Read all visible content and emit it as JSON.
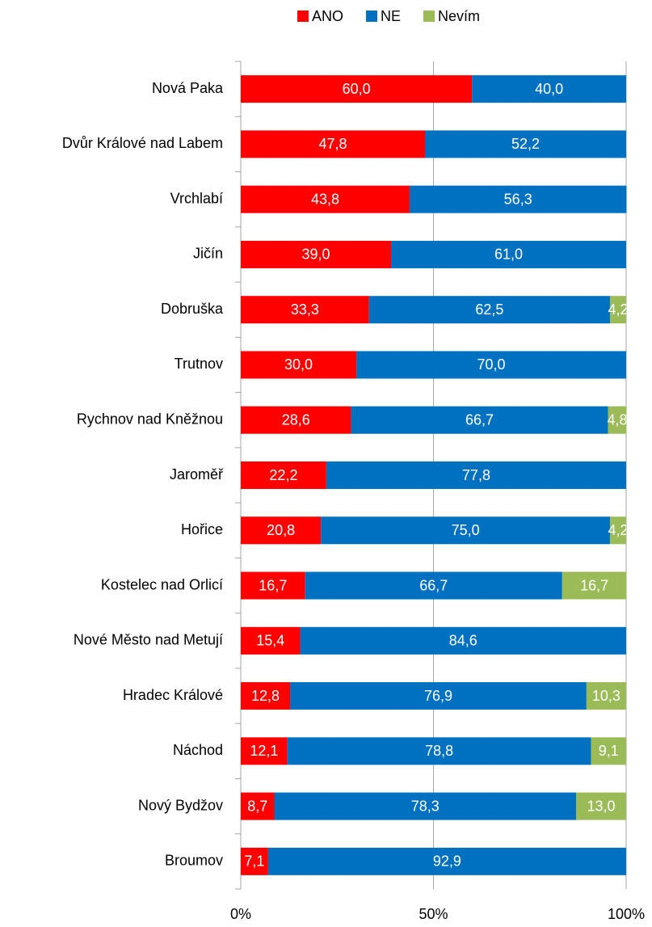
{
  "chart_data": {
    "type": "stacked-bar-horizontal",
    "categories": [
      "Nová Paka",
      "Dvůr Králové nad Labem",
      "Vrchlabí",
      "Jičín",
      "Dobruška",
      "Trutnov",
      "Rychnov nad Kněžnou",
      "Jaroměř",
      "Hořice",
      "Kostelec nad Orlicí",
      "Nové Město nad Metují",
      "Hradec Králové",
      "Náchod",
      "Nový Bydžov",
      "Broumov"
    ],
    "series": [
      {
        "name": "ANO",
        "color": "#ff0000",
        "values": [
          60,
          47.8,
          43.8,
          39,
          33.3,
          30,
          28.6,
          22.2,
          20.8,
          16.7,
          15.4,
          12.8,
          12.1,
          8.7,
          7.1
        ],
        "value_labels": [
          "60,0",
          "47,8",
          "43,8",
          "39,0",
          "33,3",
          "30,0",
          "28,6",
          "22,2",
          "20,8",
          "16,7",
          "15,4",
          "12,8",
          "12,1",
          "8,7",
          "7,1"
        ]
      },
      {
        "name": "NE",
        "color": "#0070c0",
        "values": [
          40,
          52.2,
          56.3,
          61,
          62.5,
          70,
          66.7,
          77.8,
          75,
          66.7,
          84.6,
          76.9,
          78.8,
          78.3,
          92.9
        ],
        "value_labels": [
          "40,0",
          "52,2",
          "56,3",
          "61,0",
          "62,5",
          "70,0",
          "66,7",
          "77,8",
          "75,0",
          "66,7",
          "84,6",
          "76,9",
          "78,8",
          "78,3",
          "92,9"
        ]
      },
      {
        "name": "Nevím",
        "color": "#9bbb59",
        "values": [
          null,
          null,
          null,
          null,
          4.2,
          null,
          4.8,
          null,
          4.2,
          16.7,
          null,
          10.3,
          9.1,
          13,
          null
        ],
        "value_labels": [
          null,
          null,
          null,
          null,
          "4,2",
          null,
          "4,8",
          null,
          "4,2",
          "16,7",
          null,
          "10,3",
          "9,1",
          "13,0",
          null
        ]
      }
    ],
    "xlim": [
      0,
      100
    ],
    "xticks": [
      {
        "value": 0,
        "label": "0%"
      },
      {
        "value": 50,
        "label": "50%"
      },
      {
        "value": 100,
        "label": "100%"
      }
    ],
    "grid": true,
    "legend": "top"
  }
}
